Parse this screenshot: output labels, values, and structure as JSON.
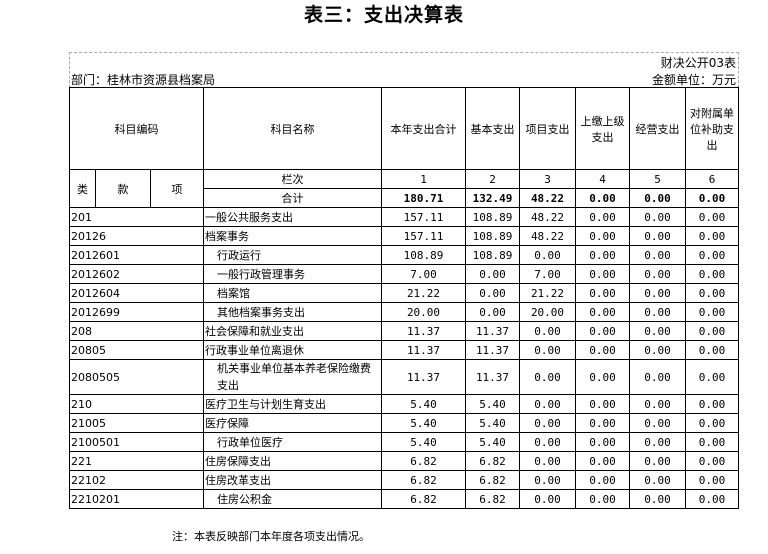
{
  "title": "表三：支出决算表",
  "form_no": "财决公开03表",
  "department": "部门：桂林市资源县档案局",
  "unit": "金额单位：万元",
  "headers": {
    "code": "科目编码",
    "name": "科目名称",
    "cols": [
      "本年支出合计",
      "基本支出",
      "项目支出",
      "上缴上级支出",
      "经营支出",
      "对附属单位补助支出"
    ],
    "lei": "类",
    "kuan": "款",
    "xiang": "项",
    "lanci": "栏次",
    "col_nums": [
      "1",
      "2",
      "3",
      "4",
      "5",
      "6"
    ]
  },
  "total": {
    "label": "合计",
    "values": [
      "180.71",
      "132.49",
      "48.22",
      "0.00",
      "0.00",
      "0.00"
    ]
  },
  "rows": [
    {
      "code": "201",
      "name": "一般公共服务支出",
      "indent": false,
      "values": [
        "157.11",
        "108.89",
        "48.22",
        "0.00",
        "0.00",
        "0.00"
      ]
    },
    {
      "code": "20126",
      "name": "档案事务",
      "indent": false,
      "values": [
        "157.11",
        "108.89",
        "48.22",
        "0.00",
        "0.00",
        "0.00"
      ]
    },
    {
      "code": "2012601",
      "name": "行政运行",
      "indent": true,
      "values": [
        "108.89",
        "108.89",
        "0.00",
        "0.00",
        "0.00",
        "0.00"
      ]
    },
    {
      "code": "2012602",
      "name": "一般行政管理事务",
      "indent": true,
      "values": [
        "7.00",
        "0.00",
        "7.00",
        "0.00",
        "0.00",
        "0.00"
      ]
    },
    {
      "code": "2012604",
      "name": "档案馆",
      "indent": true,
      "values": [
        "21.22",
        "0.00",
        "21.22",
        "0.00",
        "0.00",
        "0.00"
      ]
    },
    {
      "code": "2012699",
      "name": "其他档案事务支出",
      "indent": true,
      "values": [
        "20.00",
        "0.00",
        "20.00",
        "0.00",
        "0.00",
        "0.00"
      ]
    },
    {
      "code": "208",
      "name": "社会保障和就业支出",
      "indent": false,
      "values": [
        "11.37",
        "11.37",
        "0.00",
        "0.00",
        "0.00",
        "0.00"
      ]
    },
    {
      "code": "20805",
      "name": "行政事业单位离退休",
      "indent": false,
      "values": [
        "11.37",
        "11.37",
        "0.00",
        "0.00",
        "0.00",
        "0.00"
      ]
    },
    {
      "code": "2080505",
      "name": "机关事业单位基本养老保险缴费支出",
      "indent": true,
      "values": [
        "11.37",
        "11.37",
        "0.00",
        "0.00",
        "0.00",
        "0.00"
      ]
    },
    {
      "code": "210",
      "name": "医疗卫生与计划生育支出",
      "indent": false,
      "values": [
        "5.40",
        "5.40",
        "0.00",
        "0.00",
        "0.00",
        "0.00"
      ]
    },
    {
      "code": "21005",
      "name": "医疗保障",
      "indent": false,
      "values": [
        "5.40",
        "5.40",
        "0.00",
        "0.00",
        "0.00",
        "0.00"
      ]
    },
    {
      "code": "2100501",
      "name": "行政单位医疗",
      "indent": true,
      "values": [
        "5.40",
        "5.40",
        "0.00",
        "0.00",
        "0.00",
        "0.00"
      ]
    },
    {
      "code": "221",
      "name": "住房保障支出",
      "indent": false,
      "values": [
        "6.82",
        "6.82",
        "0.00",
        "0.00",
        "0.00",
        "0.00"
      ]
    },
    {
      "code": "22102",
      "name": "住房改革支出",
      "indent": false,
      "values": [
        "6.82",
        "6.82",
        "0.00",
        "0.00",
        "0.00",
        "0.00"
      ]
    },
    {
      "code": "2210201",
      "name": "住房公积金",
      "indent": true,
      "values": [
        "6.82",
        "6.82",
        "0.00",
        "0.00",
        "0.00",
        "0.00"
      ]
    }
  ],
  "note": "注：本表反映部门本年度各项支出情况。"
}
